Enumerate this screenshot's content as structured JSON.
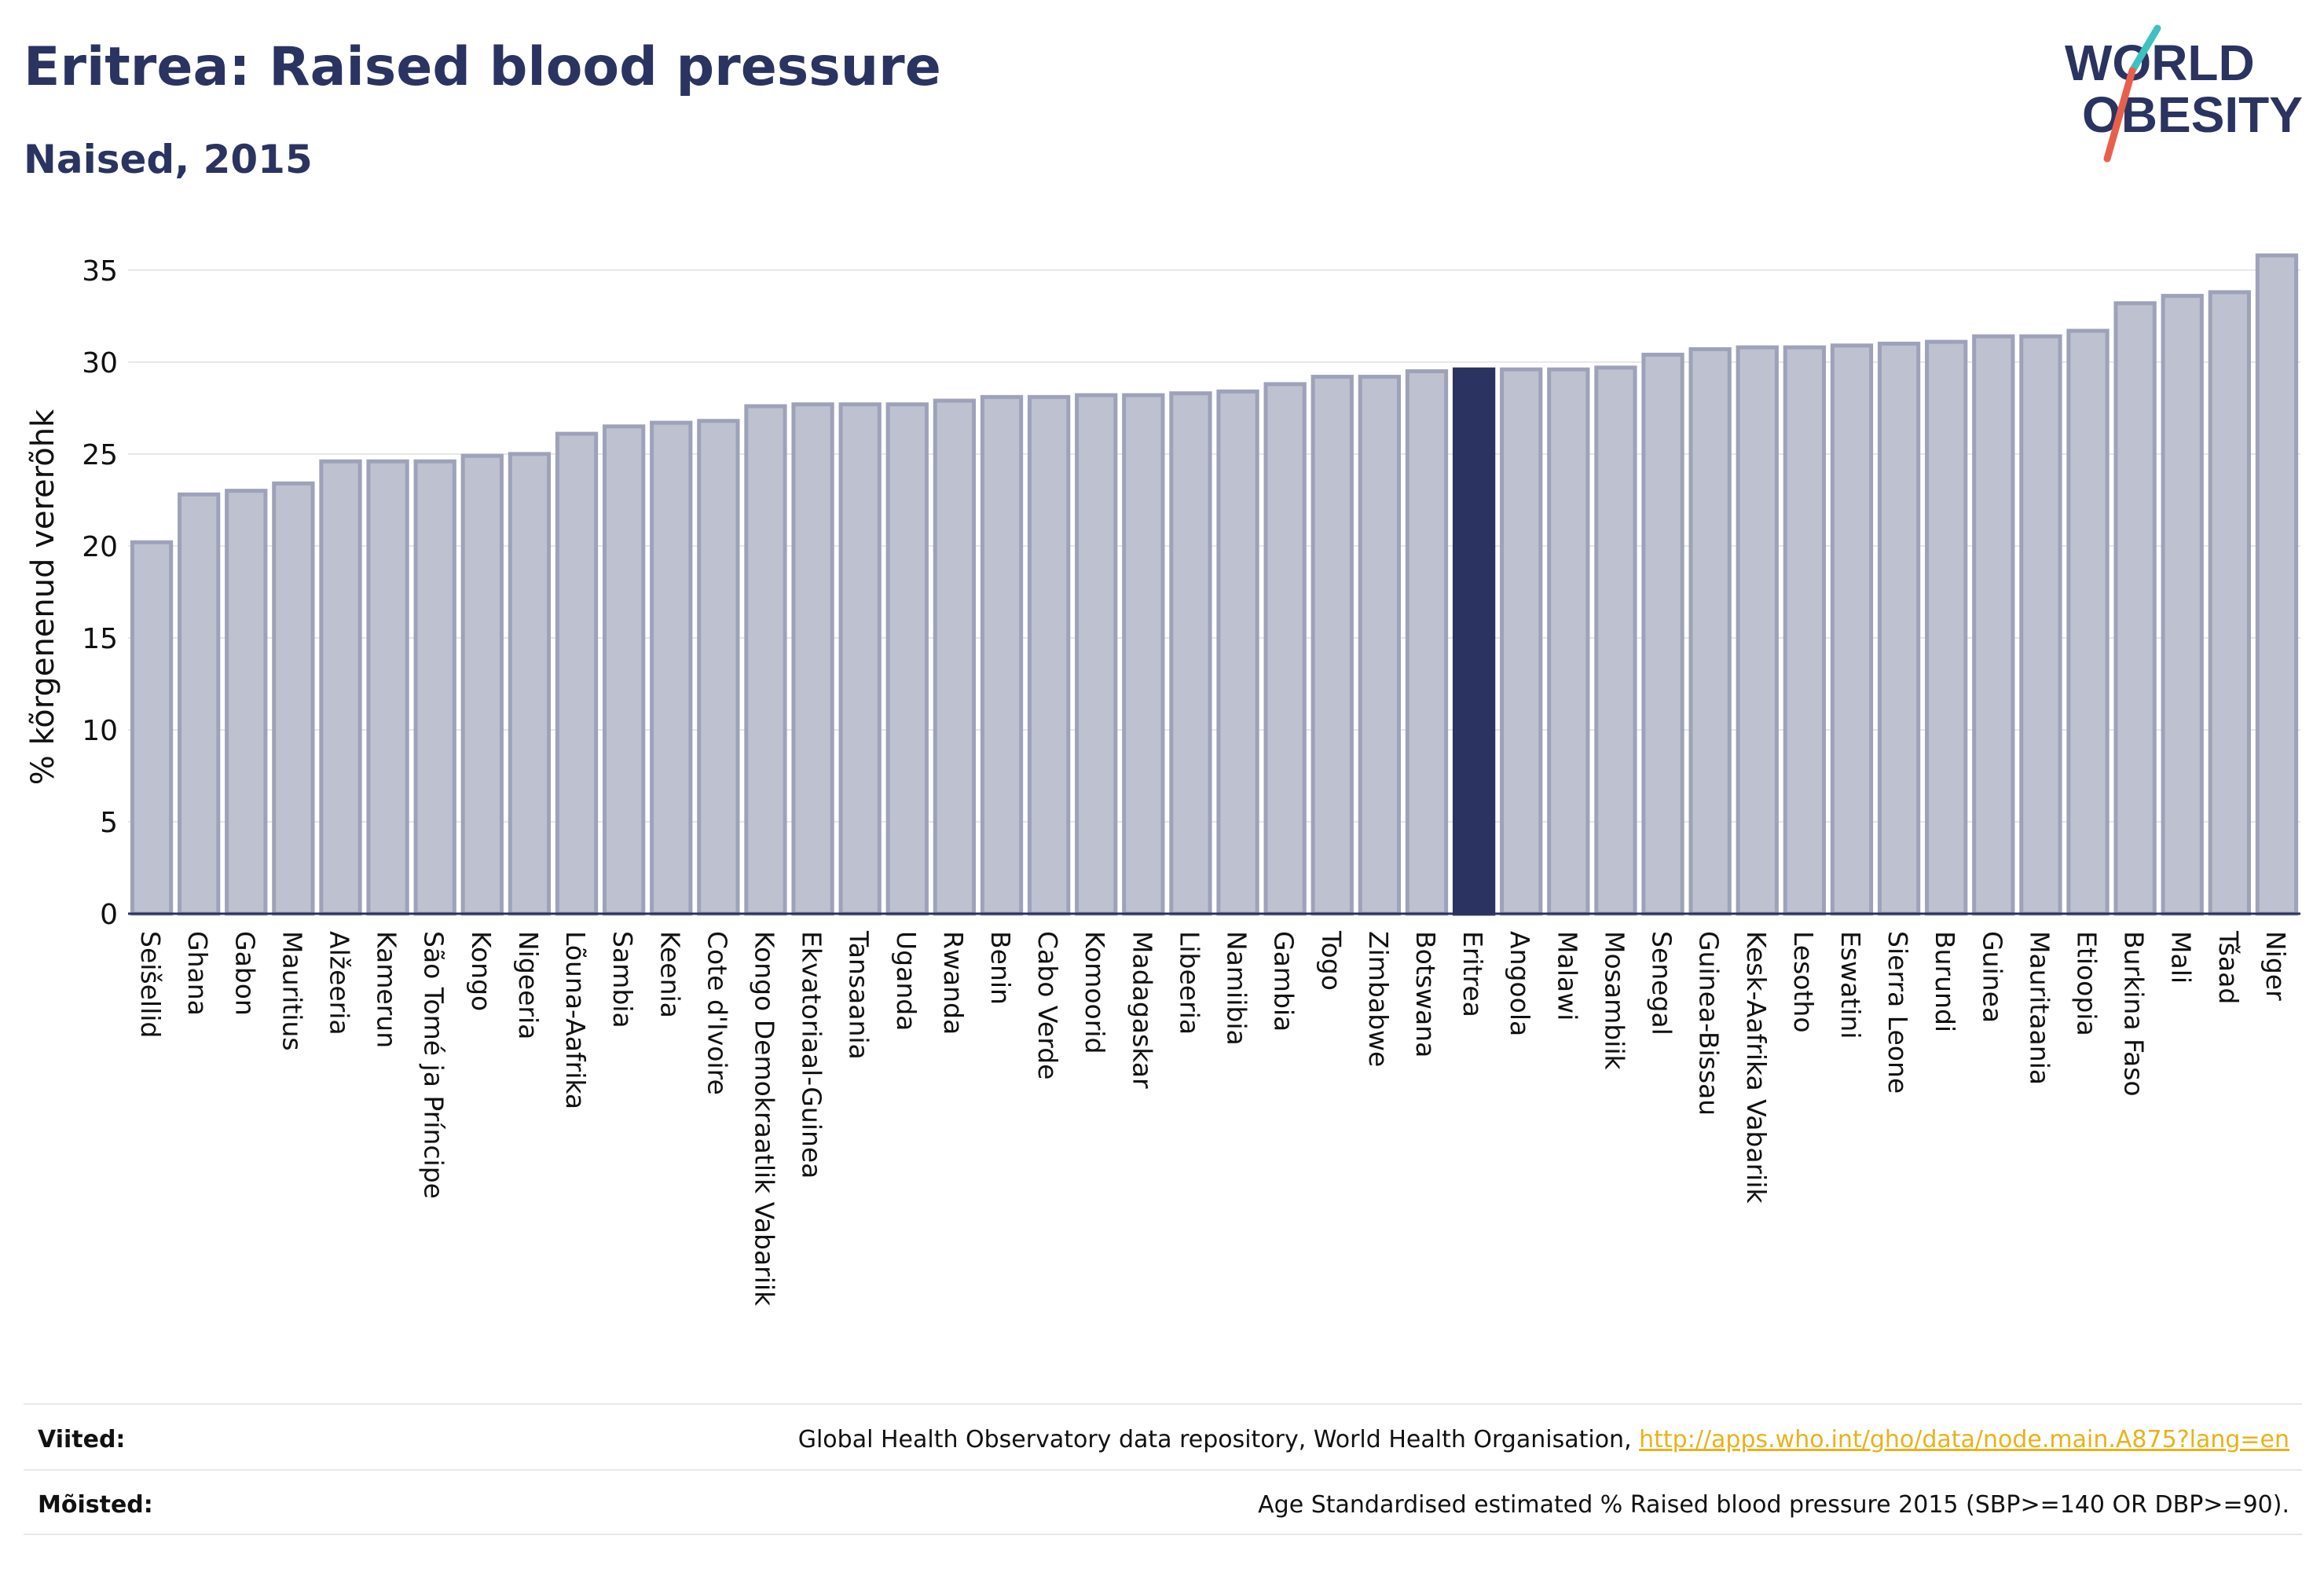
{
  "header": {
    "title": "Eritrea: Raised blood pressure",
    "subtitle": "Naised, 2015"
  },
  "logo": {
    "line1": "WORLD",
    "line2": "OBESITY",
    "text_color": "#2b3360",
    "slash_colors": [
      "#3fc1c0",
      "#e8604c"
    ]
  },
  "colors": {
    "bar_fill": "#bec1d0",
    "bar_stroke": "#9ea2b9",
    "highlight": "#2b3360",
    "grid": "#e6e6ea",
    "axis": "#2b3360",
    "text": "#2b3360"
  },
  "chart_data": {
    "type": "bar",
    "title": "Eritrea: Raised blood pressure",
    "subtitle": "Naised, 2015",
    "xlabel": "",
    "ylabel": "% kõrgenenud vererõhk",
    "ylim": [
      0,
      37
    ],
    "yticks": [
      0,
      5,
      10,
      15,
      20,
      25,
      30,
      35
    ],
    "grid": true,
    "highlight": "Eritrea",
    "categories": [
      "Seišellid",
      "Ghana",
      "Gabon",
      "Mauritius",
      "Alžeeria",
      "Kamerun",
      "São Tomé ja Príncipe",
      "Kongo",
      "Nigeeria",
      "Lõuna-Aafrika",
      "Sambia",
      "Keenia",
      "Cote d'Ivoire",
      "Kongo Demokraatlik Vabariik",
      "Ekvatoriaal-Guinea",
      "Tansaania",
      "Uganda",
      "Rwanda",
      "Benin",
      "Cabo Verde",
      "Komoorid",
      "Madagaskar",
      "Libeeria",
      "Namiibia",
      "Gambia",
      "Togo",
      "Zimbabwe",
      "Botswana",
      "Eritrea",
      "Angoola",
      "Malawi",
      "Mosambiik",
      "Senegal",
      "Guinea-Bissau",
      "Kesk-Aafrika Vabariik",
      "Lesotho",
      "Eswatini",
      "Sierra Leone",
      "Burundi",
      "Guinea",
      "Mauritaania",
      "Etioopia",
      "Burkina Faso",
      "Mali",
      "Tšaad",
      "Niger"
    ],
    "values": [
      20.2,
      22.8,
      23.0,
      23.4,
      24.6,
      24.6,
      24.6,
      24.9,
      25.0,
      26.1,
      26.5,
      26.7,
      26.8,
      27.6,
      27.7,
      27.7,
      27.7,
      27.9,
      28.1,
      28.1,
      28.2,
      28.2,
      28.3,
      28.4,
      28.8,
      29.2,
      29.2,
      29.5,
      29.6,
      29.6,
      29.6,
      29.7,
      30.4,
      30.7,
      30.8,
      30.8,
      30.9,
      31.0,
      31.1,
      31.4,
      31.4,
      31.7,
      33.2,
      33.6,
      33.8,
      35.8
    ]
  },
  "footer": {
    "sources_label": "Viited:",
    "sources_text": "Global Health Observatory data repository, World Health Organisation, ",
    "sources_link": "http://apps.who.int/gho/data/node.main.A875?lang=en",
    "definitions_label": "Mõisted:",
    "definitions_text": "Age Standardised estimated % Raised blood pressure 2015 (SBP>=140 OR DBP>=90)."
  }
}
